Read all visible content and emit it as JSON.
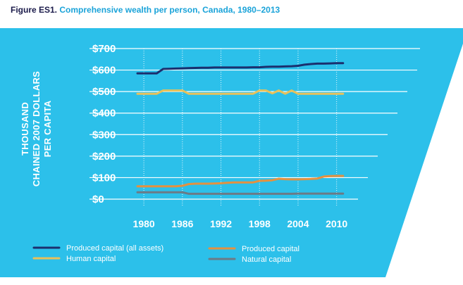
{
  "figure": {
    "label": "Figure ES1.",
    "title": "Comprehensive wealth per person, Canada, 1980–2013"
  },
  "colors": {
    "panel": "#2cc0ea",
    "grid": "#ffffff",
    "dotted_grid": "#ffffff"
  },
  "chart_data": {
    "type": "line",
    "title": "Comprehensive wealth per person, Canada, 1980–2013",
    "ylabel_lines": [
      "THOUSAND",
      "CHAINED 2007 DOLLARS",
      "PER CAPITA"
    ],
    "xlabel": "",
    "ylim": [
      0,
      700
    ],
    "xlim": [
      1979,
      2013
    ],
    "y_ticks": [
      0,
      100,
      200,
      300,
      400,
      500,
      600,
      700
    ],
    "y_tick_labels": [
      "$0",
      "$100",
      "$200",
      "$300",
      "$400",
      "$500",
      "$600",
      "$700"
    ],
    "x_ticks": [
      1980,
      1986,
      1992,
      1998,
      2004,
      2010
    ],
    "x_tick_labels": [
      "1980",
      "1986",
      "1992",
      "1998",
      "2004",
      "2010"
    ],
    "grid": "horizontal lines; dotted vertical lines at x ticks",
    "legend_position": "bottom",
    "series": [
      {
        "name": "Produced capital (all assets)",
        "color": "#1b2f6e",
        "x": [
          1979,
          1980,
          1981,
          1982,
          1983,
          1984,
          1985,
          1986,
          1987,
          1988,
          1989,
          1990,
          1991,
          1992,
          1993,
          1994,
          1995,
          1996,
          1997,
          1998,
          1999,
          2000,
          2001,
          2002,
          2003,
          2004,
          2005,
          2006,
          2007,
          2008,
          2009,
          2010,
          2011
        ],
        "values": [
          585,
          585,
          585,
          585,
          605,
          606,
          607,
          608,
          609,
          610,
          611,
          611,
          612,
          612,
          612,
          612,
          612,
          612,
          613,
          613,
          615,
          616,
          616,
          617,
          618,
          620,
          625,
          628,
          630,
          630,
          631,
          632,
          632
        ]
      },
      {
        "name": "Human capital",
        "color": "#e8c15a",
        "x": [
          1979,
          1980,
          1981,
          1982,
          1983,
          1984,
          1985,
          1986,
          1987,
          1988,
          1989,
          1990,
          1991,
          1992,
          1993,
          1994,
          1995,
          1996,
          1997,
          1998,
          1999,
          2000,
          2001,
          2002,
          2003,
          2004,
          2005,
          2006,
          2007,
          2008,
          2009,
          2010,
          2011
        ],
        "values": [
          490,
          490,
          490,
          490,
          505,
          505,
          505,
          505,
          490,
          490,
          490,
          490,
          490,
          490,
          490,
          490,
          490,
          490,
          490,
          505,
          505,
          492,
          505,
          490,
          505,
          490,
          490,
          490,
          490,
          490,
          490,
          490,
          490
        ]
      },
      {
        "name": "Produced capital",
        "color": "#e4913f",
        "x": [
          1979,
          1980,
          1981,
          1982,
          1983,
          1984,
          1985,
          1986,
          1987,
          1988,
          1989,
          1990,
          1991,
          1992,
          1993,
          1994,
          1995,
          1996,
          1997,
          1998,
          1999,
          2000,
          2001,
          2002,
          2003,
          2004,
          2005,
          2006,
          2007,
          2008,
          2009,
          2010,
          2011
        ],
        "values": [
          60,
          60,
          60,
          60,
          60,
          60,
          60,
          62,
          70,
          72,
          72,
          72,
          73,
          74,
          76,
          78,
          78,
          78,
          78,
          85,
          86,
          88,
          95,
          93,
          92,
          92,
          93,
          94,
          96,
          105,
          107,
          108,
          108
        ]
      },
      {
        "name": "Natural capital",
        "color": "#6c7a86",
        "x": [
          1979,
          1980,
          1981,
          1982,
          1983,
          1984,
          1985,
          1986,
          1987,
          1988,
          1989,
          1990,
          1991,
          1992,
          1993,
          1994,
          1995,
          1996,
          1997,
          1998,
          1999,
          2000,
          2001,
          2002,
          2003,
          2004,
          2005,
          2006,
          2007,
          2008,
          2009,
          2010,
          2011
        ],
        "values": [
          32,
          32,
          32,
          32,
          32,
          32,
          32,
          32,
          25,
          25,
          25,
          25,
          25,
          25,
          25,
          25,
          25,
          25,
          25,
          25,
          25,
          25,
          25,
          25,
          25,
          26,
          26,
          26,
          26,
          26,
          26,
          26,
          26
        ]
      }
    ],
    "legend": [
      "Produced capital (all assets)",
      "Human capital",
      "Produced capital",
      "Natural capital"
    ]
  }
}
